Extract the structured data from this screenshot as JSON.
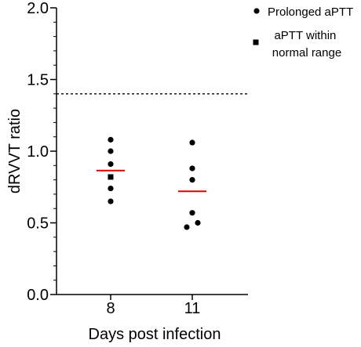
{
  "chart_data": {
    "type": "scatter",
    "title": "",
    "xlabel": "Days post infection",
    "ylabel": "dRVVT ratio",
    "categories": [
      "8",
      "11"
    ],
    "ylim": [
      0.0,
      2.0
    ],
    "yticks": [
      0.0,
      0.5,
      1.0,
      1.5,
      2.0
    ],
    "ytick_labels": [
      "0.0",
      "0.5",
      "1.0",
      "1.5",
      "2.0"
    ],
    "grid": false,
    "legend_position": "top-right",
    "reference_line": {
      "y": 1.4,
      "style": "dashed"
    },
    "legend": [
      {
        "label": "Prolonged aPTT",
        "marker": "circle"
      },
      {
        "label": "aPTT within normal range",
        "marker": "square"
      }
    ],
    "points": [
      {
        "category": "8",
        "y": 1.08,
        "offset": 0,
        "marker": "circle"
      },
      {
        "category": "8",
        "y": 1.0,
        "offset": 0,
        "marker": "circle"
      },
      {
        "category": "8",
        "y": 0.91,
        "offset": 0,
        "marker": "circle"
      },
      {
        "category": "8",
        "y": 0.82,
        "offset": 0,
        "marker": "square"
      },
      {
        "category": "8",
        "y": 0.74,
        "offset": 0,
        "marker": "circle"
      },
      {
        "category": "8",
        "y": 0.65,
        "offset": 0,
        "marker": "circle"
      },
      {
        "category": "11",
        "y": 1.06,
        "offset": 0,
        "marker": "circle"
      },
      {
        "category": "11",
        "y": 0.88,
        "offset": 0,
        "marker": "circle"
      },
      {
        "category": "11",
        "y": 0.8,
        "offset": 0,
        "marker": "circle"
      },
      {
        "category": "11",
        "y": 0.57,
        "offset": 0,
        "marker": "circle"
      },
      {
        "category": "11",
        "y": 0.5,
        "offset": 1,
        "marker": "circle"
      },
      {
        "category": "11",
        "y": 0.47,
        "offset": -1,
        "marker": "circle"
      }
    ],
    "means": [
      {
        "category": "8",
        "y": 0.865
      },
      {
        "category": "11",
        "y": 0.72
      }
    ],
    "colors": {
      "points": "#000000",
      "mean_line": "#e00000",
      "axis": "#000000"
    }
  }
}
